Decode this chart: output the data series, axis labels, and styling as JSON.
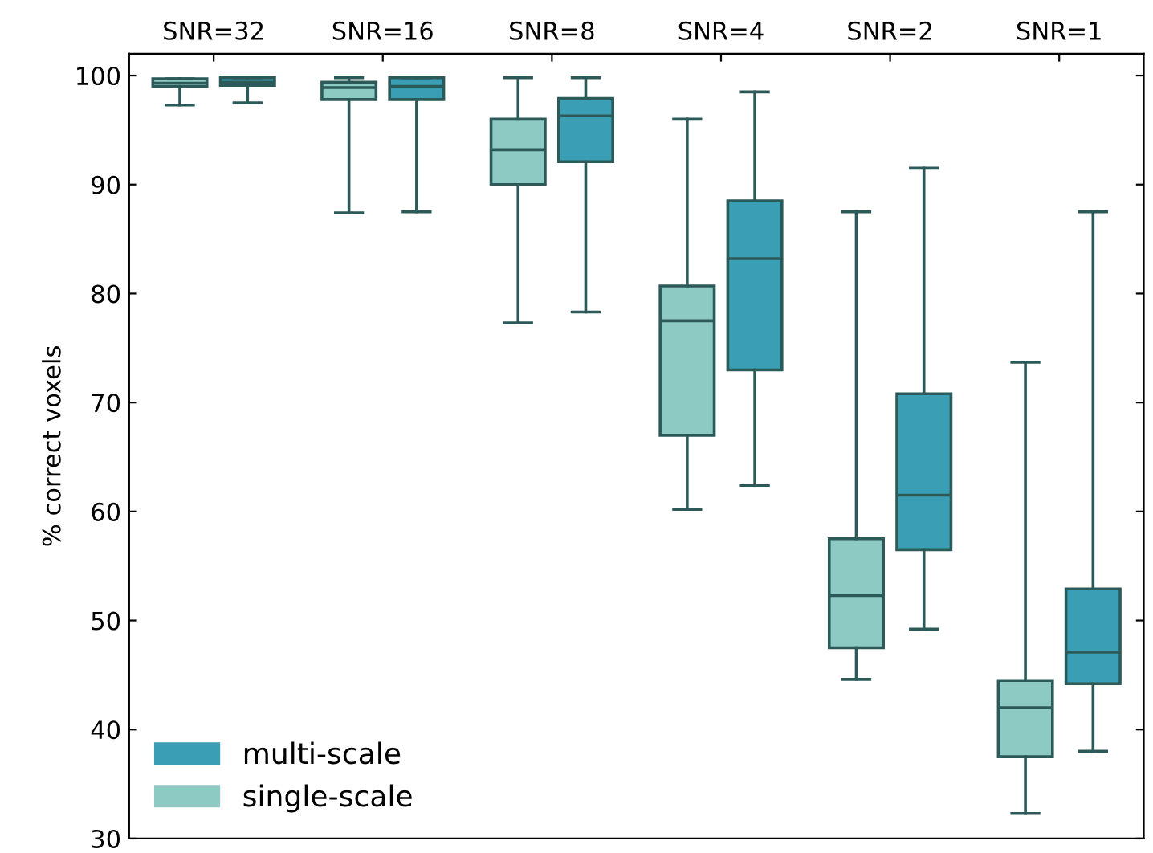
{
  "chart_data": {
    "type": "box",
    "ylabel": "% correct voxels",
    "categories": [
      "SNR=32",
      "SNR=16",
      "SNR=8",
      "SNR=4",
      "SNR=2",
      "SNR=1"
    ],
    "ylim": [
      30,
      102
    ],
    "yticks": [
      30,
      40,
      50,
      60,
      70,
      80,
      90,
      100
    ],
    "grid": false,
    "legend": "bottom left",
    "series": [
      {
        "name": "single-scale",
        "color": "#8ecac4",
        "boxes": [
          {
            "low": 97.3,
            "q1": 99.0,
            "median": 99.3,
            "q3": 99.7,
            "high": 99.7
          },
          {
            "low": 87.4,
            "q1": 97.8,
            "median": 98.9,
            "q3": 99.4,
            "high": 99.8
          },
          {
            "low": 77.3,
            "q1": 90.0,
            "median": 93.2,
            "q3": 96.0,
            "high": 99.8
          },
          {
            "low": 60.2,
            "q1": 67.0,
            "median": 77.5,
            "q3": 80.7,
            "high": 96.0
          },
          {
            "low": 44.6,
            "q1": 47.5,
            "median": 52.3,
            "q3": 57.5,
            "high": 87.5
          },
          {
            "low": 32.3,
            "q1": 37.5,
            "median": 42.0,
            "q3": 44.5,
            "high": 73.7
          }
        ]
      },
      {
        "name": "multi-scale",
        "color": "#3a9fb5",
        "boxes": [
          {
            "low": 97.5,
            "q1": 99.1,
            "median": 99.4,
            "q3": 99.8,
            "high": 99.8
          },
          {
            "low": 87.5,
            "q1": 97.8,
            "median": 99.0,
            "q3": 99.8,
            "high": 99.8
          },
          {
            "low": 78.3,
            "q1": 92.1,
            "median": 96.3,
            "q3": 97.9,
            "high": 99.8
          },
          {
            "low": 62.4,
            "q1": 73.0,
            "median": 83.2,
            "q3": 88.5,
            "high": 98.5
          },
          {
            "low": 49.2,
            "q1": 56.5,
            "median": 61.5,
            "q3": 70.8,
            "high": 91.5
          },
          {
            "low": 38.0,
            "q1": 44.2,
            "median": 47.1,
            "q3": 52.9,
            "high": 87.5
          }
        ]
      }
    ]
  }
}
